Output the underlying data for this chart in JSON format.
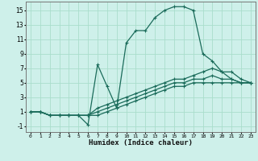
{
  "xlabel": "Humidex (Indice chaleur)",
  "bg_color": "#cef0ea",
  "grid_color": "#aaddcc",
  "line_color": "#1a6b5a",
  "ylim": [
    -1.8,
    16.2
  ],
  "xlim": [
    -0.5,
    23.5
  ],
  "yticks": [
    -1,
    1,
    3,
    5,
    7,
    9,
    11,
    13,
    15
  ],
  "xticks": [
    0,
    1,
    2,
    3,
    4,
    5,
    6,
    7,
    8,
    9,
    10,
    11,
    12,
    13,
    14,
    15,
    16,
    17,
    18,
    19,
    20,
    21,
    22,
    23
  ],
  "lines": [
    {
      "x": [
        0,
        1,
        2,
        3,
        4,
        5,
        6,
        7,
        8,
        9,
        10,
        11,
        12,
        13,
        14,
        15,
        16,
        17,
        18,
        19,
        20,
        21,
        22,
        23
      ],
      "y": [
        1,
        1,
        0.5,
        0.5,
        0.5,
        0.5,
        -0.8,
        7.5,
        4.5,
        1.5,
        10.5,
        12.2,
        12.2,
        14,
        15,
        15.5,
        15.5,
        15,
        9,
        8,
        6.5,
        5.5,
        5,
        5
      ]
    },
    {
      "x": [
        0,
        1,
        2,
        3,
        4,
        5,
        6,
        7,
        8,
        9,
        10,
        11,
        12,
        13,
        14,
        15,
        16,
        17,
        18,
        19,
        20,
        21,
        22,
        23
      ],
      "y": [
        1,
        1,
        0.5,
        0.5,
        0.5,
        0.5,
        0.5,
        1.5,
        2,
        2.5,
        3,
        3.5,
        4,
        4.5,
        5,
        5.5,
        5.5,
        6,
        6.5,
        7,
        6.5,
        6.5,
        5.5,
        5
      ]
    },
    {
      "x": [
        0,
        1,
        2,
        3,
        4,
        5,
        6,
        7,
        8,
        9,
        10,
        11,
        12,
        13,
        14,
        15,
        16,
        17,
        18,
        19,
        20,
        21,
        22,
        23
      ],
      "y": [
        1,
        1,
        0.5,
        0.5,
        0.5,
        0.5,
        0.5,
        1,
        1.5,
        2,
        2.5,
        3,
        3.5,
        4,
        4.5,
        5,
        5,
        5.5,
        5.5,
        6,
        5.5,
        5.5,
        5,
        5
      ]
    },
    {
      "x": [
        0,
        1,
        2,
        3,
        4,
        5,
        6,
        7,
        8,
        9,
        10,
        11,
        12,
        13,
        14,
        15,
        16,
        17,
        18,
        19,
        20,
        21,
        22,
        23
      ],
      "y": [
        1,
        1,
        0.5,
        0.5,
        0.5,
        0.5,
        0.5,
        0.5,
        1,
        1.5,
        2,
        2.5,
        3,
        3.5,
        4,
        4.5,
        4.5,
        5,
        5,
        5,
        5,
        5,
        5,
        5
      ]
    }
  ]
}
